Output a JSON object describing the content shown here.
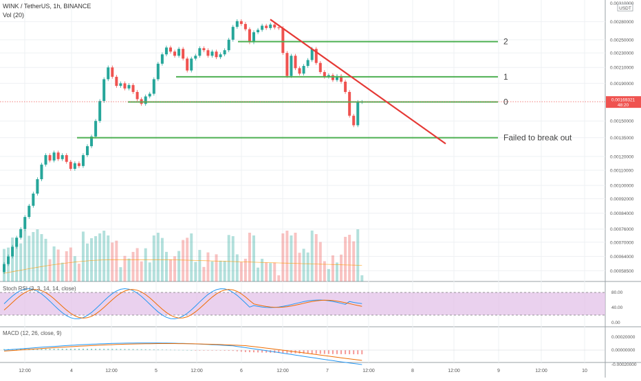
{
  "header": {
    "symbol_line": "WINK / TetherUS, 1h, BINANCE",
    "volume_label": "Vol (20)"
  },
  "price_scale": {
    "currency": "USDT",
    "top_partial": "0.00310000",
    "ticks": [
      "0.00280000",
      "0.00250000",
      "0.00230000",
      "0.00210000",
      "0.00190000",
      "0.00150000",
      "0.00135000",
      "0.00120000",
      "0.00110000",
      "0.00100000",
      "0.00092000",
      "0.00084000",
      "0.00076000",
      "0.00070000",
      "0.00064000",
      "0.00058500"
    ],
    "current_price": "0.00169321",
    "countdown": "48:20",
    "colors": {
      "up": "#26a69a",
      "down": "#ef5350",
      "current_label_bg": "#ef5350"
    }
  },
  "stoch_rsi": {
    "title": "Stoch RSI (3, 3, 14, 14, close)",
    "ticks": [
      "80.00",
      "40.00",
      "0.00"
    ],
    "band_color": "#e1bee7"
  },
  "macd": {
    "title": "MACD (12, 26, close, 9)",
    "ticks": [
      "0.00020000",
      "0.00000000",
      "-0.00020000"
    ]
  },
  "time_axis": [
    "12:00",
    "4",
    "12:00",
    "5",
    "12:00",
    "6",
    "12:00",
    "7",
    "12:00",
    "8",
    "12:00",
    "9",
    "12:00",
    "10"
  ],
  "annotations": {
    "levels": [
      {
        "label": "2"
      },
      {
        "label": "1"
      },
      {
        "label": "0"
      },
      {
        "label": "Failed to break out"
      }
    ],
    "level_color": "#4caf50",
    "trendline_color": "#e53935"
  },
  "chart_data": {
    "type": "candlestick",
    "timeframe": "1h",
    "candles_approx": [
      {
        "open": 0.00058,
        "close": 0.00061
      },
      {
        "open": 0.00061,
        "close": 0.00064
      },
      {
        "open": 0.00064,
        "close": 0.00068
      },
      {
        "open": 0.00068,
        "close": 0.00072
      },
      {
        "open": 0.00072,
        "close": 0.00076
      },
      {
        "open": 0.00076,
        "close": 0.00082
      },
      {
        "open": 0.00082,
        "close": 0.00088
      },
      {
        "open": 0.00088,
        "close": 0.00095
      },
      {
        "open": 0.00095,
        "close": 0.00104
      },
      {
        "open": 0.00104,
        "close": 0.00114
      },
      {
        "open": 0.00114,
        "close": 0.00121
      },
      {
        "open": 0.00121,
        "close": 0.00117
      },
      {
        "open": 0.00117,
        "close": 0.00123
      },
      {
        "open": 0.00123,
        "close": 0.00118
      },
      {
        "open": 0.00118,
        "close": 0.00121
      },
      {
        "open": 0.00121,
        "close": 0.00116
      },
      {
        "open": 0.00116,
        "close": 0.00111
      },
      {
        "open": 0.00111,
        "close": 0.00115
      },
      {
        "open": 0.00115,
        "close": 0.00113
      },
      {
        "open": 0.00113,
        "close": 0.00121
      },
      {
        "open": 0.00121,
        "close": 0.00128
      },
      {
        "open": 0.00128,
        "close": 0.00136
      },
      {
        "open": 0.00136,
        "close": 0.0015
      },
      {
        "open": 0.0015,
        "close": 0.0017
      },
      {
        "open": 0.0017,
        "close": 0.00195
      },
      {
        "open": 0.00195,
        "close": 0.0021
      },
      {
        "open": 0.0021,
        "close": 0.00198
      },
      {
        "open": 0.00198,
        "close": 0.00187
      },
      {
        "open": 0.00187,
        "close": 0.0019
      },
      {
        "open": 0.0019,
        "close": 0.00184
      },
      {
        "open": 0.00184,
        "close": 0.00188
      },
      {
        "open": 0.00188,
        "close": 0.0018
      },
      {
        "open": 0.0018,
        "close": 0.00172
      },
      {
        "open": 0.00172,
        "close": 0.00167
      },
      {
        "open": 0.00167,
        "close": 0.00175
      },
      {
        "open": 0.00175,
        "close": 0.00178
      },
      {
        "open": 0.00178,
        "close": 0.00195
      },
      {
        "open": 0.00195,
        "close": 0.00215
      },
      {
        "open": 0.00215,
        "close": 0.00228
      },
      {
        "open": 0.00228,
        "close": 0.00238
      },
      {
        "open": 0.00238,
        "close": 0.00232
      },
      {
        "open": 0.00232,
        "close": 0.00226
      },
      {
        "open": 0.00226,
        "close": 0.00236
      },
      {
        "open": 0.00236,
        "close": 0.00222
      },
      {
        "open": 0.00222,
        "close": 0.00206
      },
      {
        "open": 0.00206,
        "close": 0.00222
      },
      {
        "open": 0.00222,
        "close": 0.00226
      },
      {
        "open": 0.00226,
        "close": 0.00237
      },
      {
        "open": 0.00237,
        "close": 0.00234
      },
      {
        "open": 0.00234,
        "close": 0.00226
      },
      {
        "open": 0.00226,
        "close": 0.00232
      },
      {
        "open": 0.00232,
        "close": 0.00224
      },
      {
        "open": 0.00224,
        "close": 0.00228
      },
      {
        "open": 0.00228,
        "close": 0.00234
      },
      {
        "open": 0.00234,
        "close": 0.0025
      },
      {
        "open": 0.0025,
        "close": 0.00271
      },
      {
        "open": 0.00271,
        "close": 0.00281
      },
      {
        "open": 0.00281,
        "close": 0.00276
      },
      {
        "open": 0.00276,
        "close": 0.00267
      },
      {
        "open": 0.00267,
        "close": 0.00246
      },
      {
        "open": 0.00246,
        "close": 0.00262
      },
      {
        "open": 0.00262,
        "close": 0.00266
      },
      {
        "open": 0.00266,
        "close": 0.00273
      },
      {
        "open": 0.00273,
        "close": 0.00269
      },
      {
        "open": 0.00269,
        "close": 0.00275
      },
      {
        "open": 0.00275,
        "close": 0.0027
      },
      {
        "open": 0.0027,
        "close": 0.00269
      },
      {
        "open": 0.00269,
        "close": 0.0023
      },
      {
        "open": 0.0023,
        "close": 0.00199
      },
      {
        "open": 0.00199,
        "close": 0.00226
      },
      {
        "open": 0.00226,
        "close": 0.00209
      },
      {
        "open": 0.00209,
        "close": 0.00202
      },
      {
        "open": 0.00202,
        "close": 0.00212
      },
      {
        "open": 0.00212,
        "close": 0.0022
      },
      {
        "open": 0.0022,
        "close": 0.00236
      },
      {
        "open": 0.00236,
        "close": 0.00216
      },
      {
        "open": 0.00216,
        "close": 0.00204
      },
      {
        "open": 0.00204,
        "close": 0.00198
      },
      {
        "open": 0.00198,
        "close": 0.002
      },
      {
        "open": 0.002,
        "close": 0.00194
      },
      {
        "open": 0.00194,
        "close": 0.00199
      },
      {
        "open": 0.00199,
        "close": 0.00192
      },
      {
        "open": 0.00192,
        "close": 0.0018
      },
      {
        "open": 0.0018,
        "close": 0.00155
      },
      {
        "open": 0.00155,
        "close": 0.00146
      },
      {
        "open": 0.00146,
        "close": 0.00169
      },
      {
        "open": 0.00169,
        "close": 0.00169
      }
    ],
    "horizontal_levels": [
      {
        "label": "2",
        "price": 0.00247
      },
      {
        "label": "1",
        "price": 0.00198
      },
      {
        "label": "0",
        "price": 0.00169
      },
      {
        "label": "Failed to break out",
        "price": 0.00135
      }
    ],
    "trendline": {
      "from_price": 0.00284,
      "to_price": 0.0013,
      "color": "#e53935"
    },
    "volume_ma_period": 20,
    "stoch_rsi_params": [
      3,
      3,
      14,
      14
    ],
    "stoch_rsi_band": [
      20,
      80
    ],
    "macd_params": [
      12,
      26,
      9
    ]
  }
}
